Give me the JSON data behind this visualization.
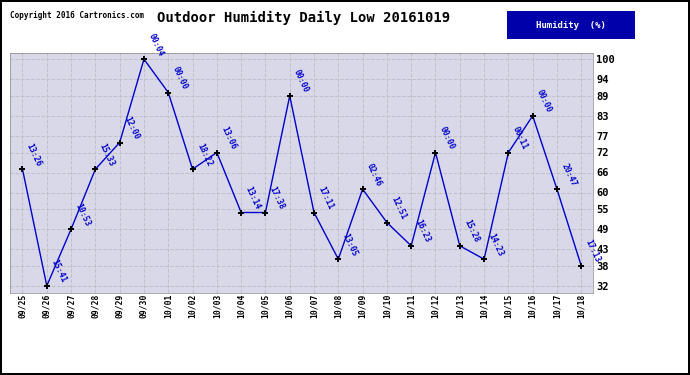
{
  "title": "Outdoor Humidity Daily Low 20161019",
  "copyright": "Copyright 2016 Cartronics.com",
  "legend_label": "Humidity  (%)",
  "x_labels": [
    "09/25",
    "09/26",
    "09/27",
    "09/28",
    "09/29",
    "09/30",
    "10/01",
    "10/02",
    "10/03",
    "10/04",
    "10/05",
    "10/06",
    "10/07",
    "10/08",
    "10/09",
    "10/10",
    "10/11",
    "10/12",
    "10/13",
    "10/14",
    "10/15",
    "10/16",
    "10/17",
    "10/18"
  ],
  "y_values": [
    67,
    32,
    49,
    67,
    75,
    100,
    90,
    67,
    72,
    54,
    54,
    89,
    54,
    40,
    61,
    51,
    44,
    72,
    44,
    40,
    72,
    83,
    61,
    38
  ],
  "time_labels": [
    "13:26",
    "15:41",
    "10:53",
    "15:33",
    "12:00",
    "00:04",
    "00:00",
    "18:22",
    "13:06",
    "13:14",
    "17:38",
    "00:00",
    "17:11",
    "13:05",
    "02:46",
    "12:51",
    "16:23",
    "00:00",
    "15:28",
    "14:23",
    "00:11",
    "00:00",
    "20:47",
    "17:13"
  ],
  "y_ticks": [
    32,
    38,
    43,
    49,
    55,
    60,
    66,
    72,
    77,
    83,
    89,
    94,
    100
  ],
  "line_color": "#0000cc",
  "marker_color": "#000000",
  "grid_color": "#c0c0c8",
  "bg_color": "#d8d8e8",
  "title_color": "#000000",
  "legend_bg": "#0000aa",
  "legend_fg": "#ffffff",
  "copyright_color": "#000000",
  "label_color": "#0000cc",
  "ylim": [
    30,
    102
  ],
  "xlim": [
    -0.5,
    23.5
  ]
}
